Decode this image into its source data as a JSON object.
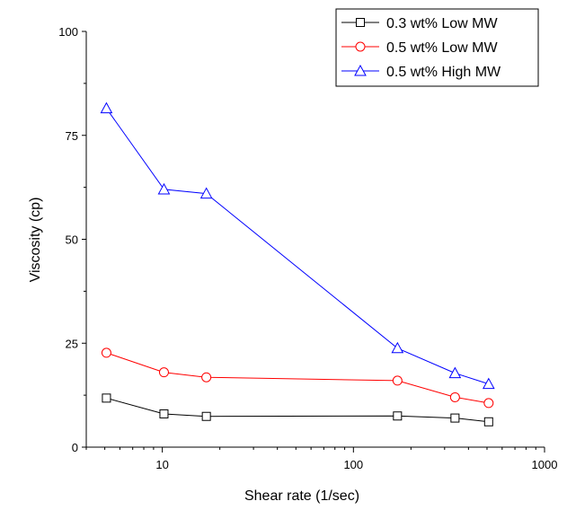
{
  "chart_data": {
    "type": "line",
    "title": "",
    "xlabel": "Shear rate (1/sec)",
    "ylabel": "Viscosity (cp)",
    "xscale": "log",
    "xlim": [
      4,
      1000
    ],
    "ylim": [
      0,
      100
    ],
    "xticks": [
      10,
      100,
      1000
    ],
    "xtick_labels": [
      "10",
      "100",
      "1000"
    ],
    "yticks": [
      0,
      25,
      50,
      75,
      100
    ],
    "ytick_labels": [
      "0",
      "25",
      "50",
      "75",
      "100"
    ],
    "grid": false,
    "legend_position": "top-right",
    "series": [
      {
        "name": "0.3 wt% Low MW",
        "color": "#000000",
        "marker": "square",
        "x": [
          5.1,
          10.2,
          17,
          170,
          340,
          510
        ],
        "y": [
          11.8,
          8.0,
          7.4,
          7.5,
          7.0,
          6.1
        ]
      },
      {
        "name": "0.5 wt% Low MW",
        "color": "#ff0000",
        "marker": "circle",
        "x": [
          5.1,
          10.2,
          17,
          170,
          340,
          510
        ],
        "y": [
          22.7,
          18.0,
          16.8,
          16.0,
          12.0,
          10.6
        ]
      },
      {
        "name": "0.5 wt% High MW",
        "color": "#0000ff",
        "marker": "triangle",
        "x": [
          5.1,
          10.2,
          17,
          170,
          340,
          510
        ],
        "y": [
          81.5,
          62.0,
          61.0,
          23.8,
          17.8,
          15.2
        ]
      }
    ]
  }
}
